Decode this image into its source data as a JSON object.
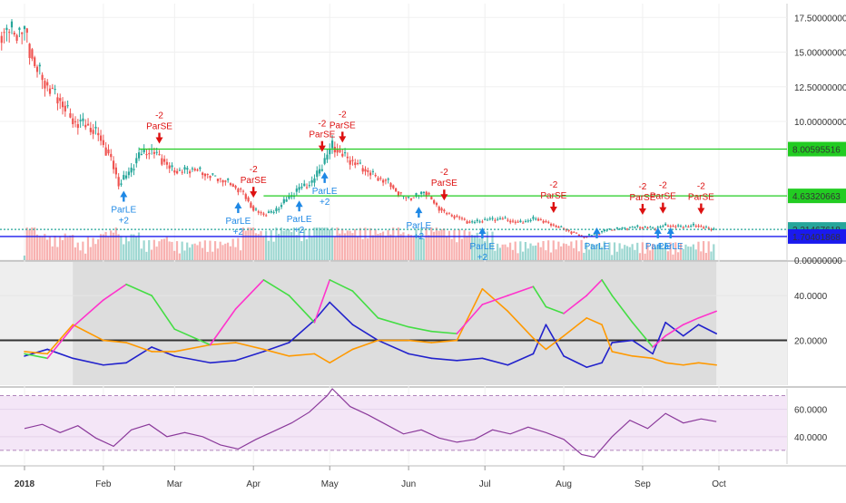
{
  "chart_data": [
    {
      "type": "candlestick",
      "panel": "price",
      "title": "",
      "x_axis_labels": [
        "2018",
        "Feb",
        "Mar",
        "Apr",
        "May",
        "Jun",
        "Jul",
        "Aug",
        "Sep",
        "Oct"
      ],
      "y_ticks": [
        "17.50000000",
        "15.00000000",
        "12.50000000",
        "10.00000000",
        "0.00000000"
      ],
      "ylim": [
        0,
        18.5
      ],
      "grid": true,
      "price_path": [
        [
          "2018-01-01",
          16.5
        ],
        [
          "2018-01-05",
          14.0
        ],
        [
          "2018-01-10",
          12.5
        ],
        [
          "2018-01-15",
          11.5
        ],
        [
          "2018-01-20",
          10.0
        ],
        [
          "2018-01-25",
          9.8
        ],
        [
          "2018-01-30",
          9.0
        ],
        [
          "2018-02-04",
          7.2
        ],
        [
          "2018-02-07",
          5.5
        ],
        [
          "2018-02-11",
          6.3
        ],
        [
          "2018-02-15",
          7.6
        ],
        [
          "2018-02-19",
          7.9
        ],
        [
          "2018-02-23",
          7.5
        ],
        [
          "2018-02-27",
          6.6
        ],
        [
          "2018-03-03",
          6.4
        ],
        [
          "2018-03-08",
          6.6
        ],
        [
          "2018-03-13",
          6.2
        ],
        [
          "2018-03-18",
          5.9
        ],
        [
          "2018-03-23",
          5.5
        ],
        [
          "2018-03-28",
          4.8
        ],
        [
          "2018-04-01",
          3.6
        ],
        [
          "2018-04-05",
          3.3
        ],
        [
          "2018-04-09",
          3.5
        ],
        [
          "2018-04-14",
          4.4
        ],
        [
          "2018-04-19",
          5.2
        ],
        [
          "2018-04-24",
          5.6
        ],
        [
          "2018-04-28",
          6.9
        ],
        [
          "2018-05-02",
          8.3
        ],
        [
          "2018-05-05",
          7.7
        ],
        [
          "2018-05-09",
          7.2
        ],
        [
          "2018-05-14",
          6.6
        ],
        [
          "2018-05-19",
          6.0
        ],
        [
          "2018-05-24",
          5.6
        ],
        [
          "2018-05-29",
          4.6
        ],
        [
          "2018-06-03",
          4.5
        ],
        [
          "2018-06-07",
          5.0
        ],
        [
          "2018-06-11",
          4.1
        ],
        [
          "2018-06-15",
          3.4
        ],
        [
          "2018-06-20",
          3.1
        ],
        [
          "2018-06-25",
          2.7
        ],
        [
          "2018-07-01",
          2.9
        ],
        [
          "2018-07-07",
          3.0
        ],
        [
          "2018-07-14",
          2.7
        ],
        [
          "2018-07-21",
          3.0
        ],
        [
          "2018-07-28",
          2.5
        ],
        [
          "2018-08-03",
          2.1
        ],
        [
          "2018-08-08",
          1.7
        ],
        [
          "2018-08-12",
          1.8
        ],
        [
          "2018-08-18",
          2.2
        ],
        [
          "2018-08-24",
          2.3
        ],
        [
          "2018-08-30",
          2.4
        ],
        [
          "2018-09-05",
          2.3
        ],
        [
          "2018-09-10",
          2.5
        ],
        [
          "2018-09-16",
          2.4
        ],
        [
          "2018-09-22",
          2.5
        ],
        [
          "2018-09-27",
          2.25
        ]
      ],
      "horizontal_lines": [
        {
          "label": "8.00595516",
          "value": 8.00595516,
          "color": "#22cc22"
        },
        {
          "label": "4.63320663",
          "value": 4.63320663,
          "color": "#22cc22"
        },
        {
          "label": "2.21467618",
          "value": 2.21467618,
          "color": "#26a69a"
        },
        {
          "label": "1.70401868",
          "value": 1.70401868,
          "color": "#1a1aee"
        }
      ],
      "signals": [
        {
          "type": "ParLE",
          "note": "+2",
          "date": "2018-02-09"
        },
        {
          "type": "ParSE",
          "note": "-2",
          "date": "2018-02-23"
        },
        {
          "type": "ParLE",
          "note": "+2",
          "date": "2018-03-26"
        },
        {
          "type": "ParSE",
          "note": "-2",
          "date": "2018-04-01"
        },
        {
          "type": "ParLE",
          "note": "+2",
          "date": "2018-04-19"
        },
        {
          "type": "ParLE",
          "note": "+2",
          "date": "2018-04-29"
        },
        {
          "type": "ParSE",
          "note": "-2",
          "date": "2018-04-28"
        },
        {
          "type": "ParSE",
          "note": "-2",
          "date": "2018-05-06"
        },
        {
          "type": "ParLE",
          "note": "+2",
          "date": "2018-06-05"
        },
        {
          "type": "ParSE",
          "note": "-2",
          "date": "2018-06-15"
        },
        {
          "type": "ParLE",
          "note": "+2",
          "date": "2018-06-30"
        },
        {
          "type": "ParSE",
          "note": "-2",
          "date": "2018-07-28"
        },
        {
          "type": "ParLE",
          "note": "",
          "date": "2018-08-14"
        },
        {
          "type": "ParSE",
          "note": "-2",
          "date": "2018-09-01"
        },
        {
          "type": "ParLE",
          "note": "",
          "date": "2018-09-07"
        },
        {
          "type": "ParSE",
          "note": "-2",
          "date": "2018-09-09"
        },
        {
          "type": "ParLE",
          "note": "",
          "date": "2018-09-12"
        },
        {
          "type": "ParSE",
          "note": "-2",
          "date": "2018-09-24"
        }
      ],
      "volume": {
        "visible": true,
        "up_color": "#26a69a",
        "down_color": "#ef5350"
      }
    },
    {
      "type": "line",
      "panel": "dmi",
      "y_ticks": [
        "40.0000",
        "20.0000"
      ],
      "ylim": [
        0,
        55
      ],
      "reference_line": 20,
      "series": [
        {
          "color": "#2222cc",
          "points": [
            [
              "2018-01-01",
              13
            ],
            [
              "2018-01-10",
              16
            ],
            [
              "2018-01-20",
              12
            ],
            [
              "2018-02-01",
              9
            ],
            [
              "2018-02-10",
              10
            ],
            [
              "2018-02-20",
              17
            ],
            [
              "2018-03-01",
              13
            ],
            [
              "2018-03-15",
              10
            ],
            [
              "2018-03-25",
              11
            ],
            [
              "2018-04-05",
              15
            ],
            [
              "2018-04-15",
              19
            ],
            [
              "2018-04-25",
              29
            ],
            [
              "2018-05-01",
              37
            ],
            [
              "2018-05-10",
              27
            ],
            [
              "2018-05-20",
              20
            ],
            [
              "2018-06-01",
              14
            ],
            [
              "2018-06-10",
              12
            ],
            [
              "2018-06-20",
              11
            ],
            [
              "2018-06-30",
              12
            ],
            [
              "2018-07-10",
              9
            ],
            [
              "2018-07-20",
              14
            ],
            [
              "2018-07-25",
              27
            ],
            [
              "2018-08-01",
              13
            ],
            [
              "2018-08-10",
              8
            ],
            [
              "2018-08-16",
              10
            ],
            [
              "2018-08-20",
              19
            ],
            [
              "2018-08-28",
              20
            ],
            [
              "2018-09-05",
              14
            ],
            [
              "2018-09-10",
              28
            ],
            [
              "2018-09-17",
              22
            ],
            [
              "2018-09-23",
              27
            ],
            [
              "2018-09-30",
              23
            ]
          ]
        },
        {
          "color": "#ff9900",
          "points": [
            [
              "2018-01-01",
              15
            ],
            [
              "2018-01-10",
              14
            ],
            [
              "2018-01-20",
              27
            ],
            [
              "2018-02-01",
              20
            ],
            [
              "2018-02-10",
              19
            ],
            [
              "2018-02-20",
              15
            ],
            [
              "2018-03-01",
              15
            ],
            [
              "2018-03-15",
              18
            ],
            [
              "2018-03-25",
              19
            ],
            [
              "2018-04-05",
              16
            ],
            [
              "2018-04-15",
              13
            ],
            [
              "2018-04-25",
              14
            ],
            [
              "2018-05-01",
              10
            ],
            [
              "2018-05-10",
              16
            ],
            [
              "2018-05-20",
              20
            ],
            [
              "2018-06-01",
              20
            ],
            [
              "2018-06-10",
              19
            ],
            [
              "2018-06-20",
              20
            ],
            [
              "2018-06-30",
              43
            ],
            [
              "2018-07-10",
              33
            ],
            [
              "2018-07-20",
              21
            ],
            [
              "2018-07-25",
              16
            ],
            [
              "2018-08-01",
              22
            ],
            [
              "2018-08-10",
              30
            ],
            [
              "2018-08-16",
              27
            ],
            [
              "2018-08-20",
              15
            ],
            [
              "2018-08-28",
              13
            ],
            [
              "2018-09-05",
              12
            ],
            [
              "2018-09-10",
              10
            ],
            [
              "2018-09-17",
              9
            ],
            [
              "2018-09-23",
              10
            ],
            [
              "2018-09-30",
              9
            ]
          ]
        },
        {
          "color": "#ff33cc",
          "alt_color": "#44dd44",
          "points": [
            [
              "2018-01-01",
              14
            ],
            [
              "2018-01-10",
              12
            ],
            [
              "2018-01-20",
              26
            ],
            [
              "2018-02-01",
              38
            ],
            [
              "2018-02-10",
              45
            ],
            [
              "2018-02-20",
              40
            ],
            [
              "2018-03-01",
              25
            ],
            [
              "2018-03-15",
              18
            ],
            [
              "2018-03-25",
              34
            ],
            [
              "2018-04-05",
              47
            ],
            [
              "2018-04-15",
              40
            ],
            [
              "2018-04-25",
              28
            ],
            [
              "2018-05-01",
              47
            ],
            [
              "2018-05-10",
              42
            ],
            [
              "2018-05-20",
              30
            ],
            [
              "2018-06-01",
              26
            ],
            [
              "2018-06-10",
              24
            ],
            [
              "2018-06-20",
              23
            ],
            [
              "2018-06-30",
              36
            ],
            [
              "2018-07-10",
              40
            ],
            [
              "2018-07-20",
              44
            ],
            [
              "2018-07-25",
              35
            ],
            [
              "2018-08-01",
              32
            ],
            [
              "2018-08-10",
              40
            ],
            [
              "2018-08-16",
              47
            ],
            [
              "2018-08-20",
              40
            ],
            [
              "2018-08-28",
              28
            ],
            [
              "2018-09-05",
              17
            ],
            [
              "2018-09-10",
              22
            ],
            [
              "2018-09-17",
              27
            ],
            [
              "2018-09-23",
              30
            ],
            [
              "2018-09-30",
              33
            ]
          ]
        }
      ],
      "shaded_region": {
        "from": "2018-01-20",
        "to": "2018-09-30",
        "color": "#dddddd"
      }
    },
    {
      "type": "line",
      "panel": "rsi",
      "y_ticks": [
        "60.0000",
        "40.0000"
      ],
      "ylim": [
        20,
        75
      ],
      "band": [
        30,
        70
      ],
      "series": [
        {
          "color": "#8b3a9b",
          "points": [
            [
              "2018-01-01",
              46
            ],
            [
              "2018-01-08",
              49
            ],
            [
              "2018-01-15",
              43
            ],
            [
              "2018-01-22",
              48
            ],
            [
              "2018-01-29",
              39
            ],
            [
              "2018-02-05",
              33
            ],
            [
              "2018-02-12",
              45
            ],
            [
              "2018-02-19",
              49
            ],
            [
              "2018-02-26",
              40
            ],
            [
              "2018-03-05",
              43
            ],
            [
              "2018-03-12",
              40
            ],
            [
              "2018-03-19",
              34
            ],
            [
              "2018-03-26",
              31
            ],
            [
              "2018-04-02",
              38
            ],
            [
              "2018-04-09",
              44
            ],
            [
              "2018-04-16",
              50
            ],
            [
              "2018-04-23",
              58
            ],
            [
              "2018-04-30",
              70
            ],
            [
              "2018-05-02",
              75
            ],
            [
              "2018-05-09",
              62
            ],
            [
              "2018-05-16",
              56
            ],
            [
              "2018-05-23",
              49
            ],
            [
              "2018-05-30",
              42
            ],
            [
              "2018-06-06",
              45
            ],
            [
              "2018-06-13",
              39
            ],
            [
              "2018-06-20",
              36
            ],
            [
              "2018-06-27",
              38
            ],
            [
              "2018-07-04",
              45
            ],
            [
              "2018-07-11",
              42
            ],
            [
              "2018-07-18",
              47
            ],
            [
              "2018-07-25",
              43
            ],
            [
              "2018-08-01",
              38
            ],
            [
              "2018-08-08",
              27
            ],
            [
              "2018-08-13",
              25
            ],
            [
              "2018-08-20",
              40
            ],
            [
              "2018-08-27",
              52
            ],
            [
              "2018-09-03",
              46
            ],
            [
              "2018-09-10",
              57
            ],
            [
              "2018-09-17",
              50
            ],
            [
              "2018-09-24",
              53
            ],
            [
              "2018-09-30",
              51
            ]
          ]
        }
      ]
    }
  ]
}
